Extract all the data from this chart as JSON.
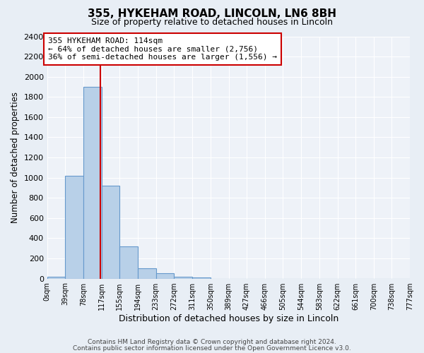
{
  "title": "355, HYKEHAM ROAD, LINCOLN, LN6 8BH",
  "subtitle": "Size of property relative to detached houses in Lincoln",
  "xlabel": "Distribution of detached houses by size in Lincoln",
  "ylabel": "Number of detached properties",
  "bar_values": [
    20,
    1020,
    1900,
    920,
    320,
    105,
    50,
    20,
    10,
    0,
    0,
    0,
    0,
    0,
    0,
    0,
    0,
    0,
    0,
    0
  ],
  "bin_edges": [
    0,
    39,
    78,
    117,
    155,
    194,
    233,
    272,
    311,
    350,
    389,
    427,
    466,
    505,
    544,
    583,
    622,
    661,
    700,
    738,
    777
  ],
  "tick_labels": [
    "0sqm",
    "39sqm",
    "78sqm",
    "117sqm",
    "155sqm",
    "194sqm",
    "233sqm",
    "272sqm",
    "311sqm",
    "350sqm",
    "389sqm",
    "427sqm",
    "466sqm",
    "505sqm",
    "544sqm",
    "583sqm",
    "622sqm",
    "661sqm",
    "700sqm",
    "738sqm",
    "777sqm"
  ],
  "bar_color": "#b8d0e8",
  "bar_edge_color": "#6699cc",
  "vline_x": 114,
  "vline_color": "#cc0000",
  "ylim": [
    0,
    2400
  ],
  "yticks": [
    0,
    200,
    400,
    600,
    800,
    1000,
    1200,
    1400,
    1600,
    1800,
    2000,
    2200,
    2400
  ],
  "annotation_title": "355 HYKEHAM ROAD: 114sqm",
  "annotation_line1": "← 64% of detached houses are smaller (2,756)",
  "annotation_line2": "36% of semi-detached houses are larger (1,556) →",
  "annotation_box_color": "#ffffff",
  "annotation_box_edge": "#cc0000",
  "footer_line1": "Contains HM Land Registry data © Crown copyright and database right 2024.",
  "footer_line2": "Contains public sector information licensed under the Open Government Licence v3.0.",
  "bg_color": "#e8eef5",
  "plot_bg_color": "#eef2f8"
}
